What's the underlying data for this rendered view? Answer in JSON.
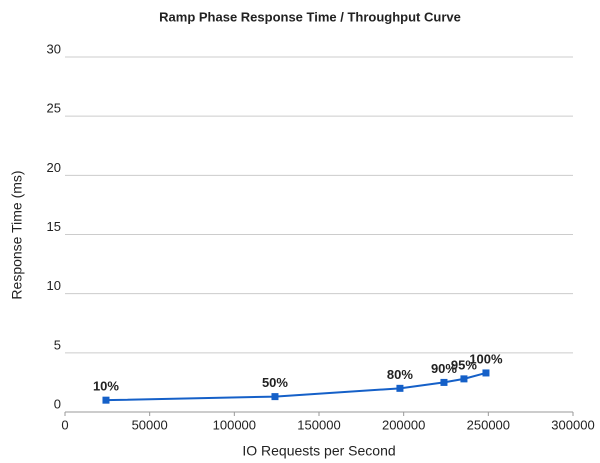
{
  "chart_data": {
    "type": "line",
    "title": "Ramp Phase Response Time / Throughput Curve",
    "x_label": "IO Requests per Second",
    "y_label": "Response Time (ms)",
    "xlim": [
      0,
      300000
    ],
    "xticks": [
      0,
      50000,
      100000,
      150000,
      200000,
      250000,
      300000
    ],
    "ylim": [
      0,
      30
    ],
    "yticks": [
      0,
      5,
      10,
      15,
      20,
      25,
      30
    ],
    "grid": true,
    "series": [
      {
        "color": "#1560c8",
        "x": [
          24200,
          124000,
          197800,
          223800,
          235600,
          248600
        ],
        "values": [
          1.0,
          1.3,
          2.0,
          2.5,
          2.8,
          3.3
        ],
        "point_labels": [
          "10%",
          "50%",
          "80%",
          "90%",
          "95%",
          "100%"
        ]
      }
    ]
  }
}
